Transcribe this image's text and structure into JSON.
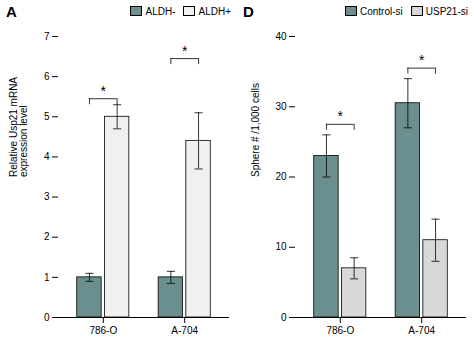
{
  "chart_data": [
    {
      "type": "bar",
      "title": "A",
      "categories": [
        "786-O",
        "A-704"
      ],
      "series": [
        {
          "name": "ALDH-",
          "color": "#6b8e8e",
          "values": [
            1.0,
            1.0
          ],
          "errors": [
            0.1,
            0.15
          ]
        },
        {
          "name": "ALDH+",
          "color": "#f0f0f0",
          "values": [
            5.0,
            4.4
          ],
          "errors": [
            0.3,
            0.7
          ]
        }
      ],
      "ylabel": "Relative Usp21 mRNA\nexpression level",
      "ylim": [
        0,
        7
      ],
      "yticks": [
        0,
        1,
        2,
        3,
        4,
        5,
        6,
        7
      ],
      "legend": "upper right",
      "annotations": [
        {
          "text": "*",
          "x": "786-O",
          "y": 5.45
        },
        {
          "text": "*",
          "x": "A-704",
          "y": 6.45
        }
      ]
    },
    {
      "type": "bar",
      "title": "D",
      "categories": [
        "786-O",
        "A-704"
      ],
      "series": [
        {
          "name": "Control-si",
          "color": "#6b8e8e",
          "values": [
            23.0,
            30.5
          ],
          "errors": [
            3.0,
            3.5
          ]
        },
        {
          "name": "USP21-si",
          "color": "#d8d8d8",
          "values": [
            7.0,
            11.0
          ],
          "errors": [
            1.5,
            3.0
          ]
        }
      ],
      "ylabel": "Sphere # /1,000 cells",
      "ylim": [
        0,
        40
      ],
      "yticks": [
        0,
        10,
        20,
        30,
        40
      ],
      "legend": "upper right",
      "annotations": [
        {
          "text": "*",
          "x": "786-O",
          "y": 27.5
        },
        {
          "text": "*",
          "x": "A-704",
          "y": 35.5
        }
      ]
    }
  ]
}
